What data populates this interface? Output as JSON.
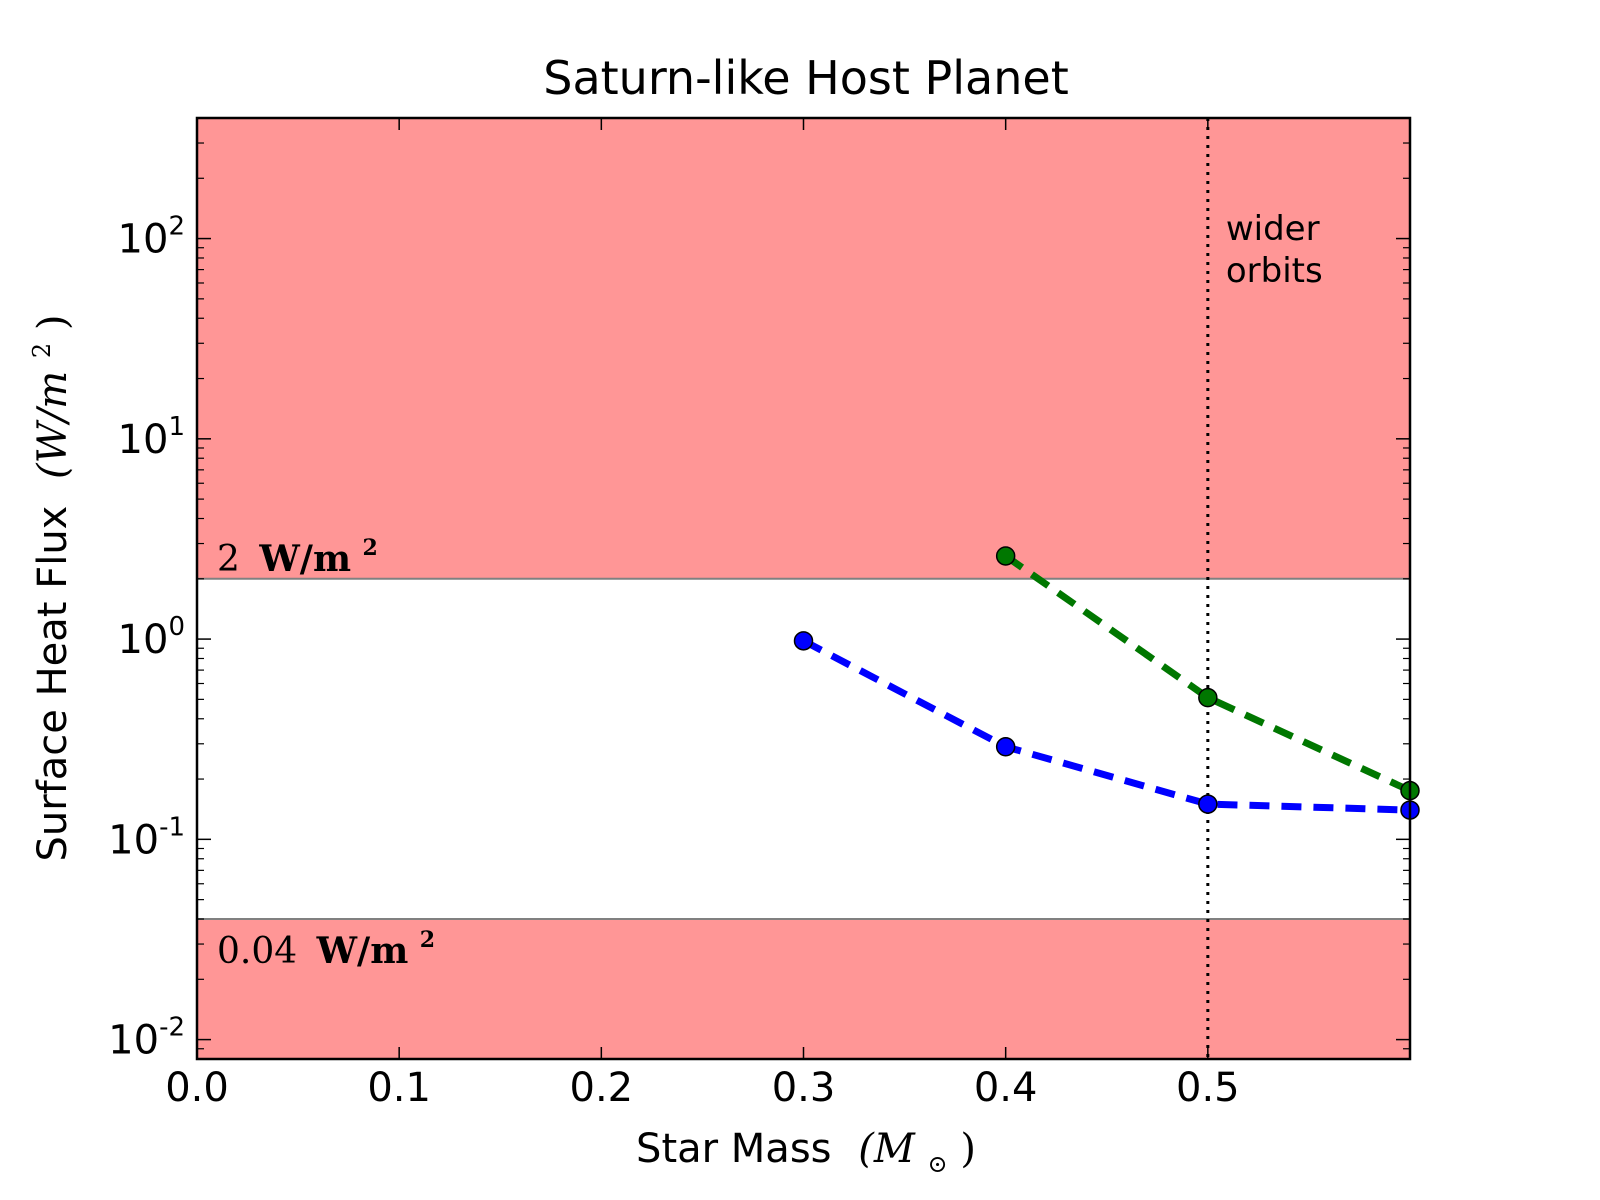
{
  "chart_data": {
    "type": "line",
    "title": "Saturn-like Host Planet",
    "xlabel": "Star Mass",
    "xlabel_unit": "(M",
    "xlabel_unit_sub": "⊙",
    "xlabel_unit_close": ")",
    "ylabel": "Surface Heat Flux",
    "ylabel_unit": "(W/m",
    "ylabel_unit_sup": "2",
    "ylabel_unit_close": " )",
    "xlim": [
      0.0,
      0.6
    ],
    "ylim": [
      0.008,
      400
    ],
    "yscale": "log",
    "x_ticks": [
      {
        "value": 0.0,
        "label": "0.0"
      },
      {
        "value": 0.1,
        "label": "0.1"
      },
      {
        "value": 0.2,
        "label": "0.2"
      },
      {
        "value": 0.3,
        "label": "0.3"
      },
      {
        "value": 0.4,
        "label": "0.4"
      },
      {
        "value": 0.5,
        "label": "0.5"
      }
    ],
    "y_ticks": [
      {
        "value": 0.01,
        "base": "10",
        "exp": "-2"
      },
      {
        "value": 0.1,
        "base": "10",
        "exp": "-1"
      },
      {
        "value": 1,
        "base": "10",
        "exp": "0"
      },
      {
        "value": 10,
        "base": "10",
        "exp": "1"
      },
      {
        "value": 100,
        "base": "10",
        "exp": "2"
      }
    ],
    "series": [
      {
        "name": "green",
        "color": "#007700",
        "points": [
          {
            "x": 0.4,
            "y": 2.6
          },
          {
            "x": 0.5,
            "y": 0.51
          },
          {
            "x": 0.6,
            "y": 0.175
          }
        ]
      },
      {
        "name": "blue",
        "color": "#0000ff",
        "points": [
          {
            "x": 0.3,
            "y": 0.98
          },
          {
            "x": 0.4,
            "y": 0.29
          },
          {
            "x": 0.5,
            "y": 0.15
          },
          {
            "x": 0.6,
            "y": 0.14
          }
        ]
      }
    ],
    "bands": [
      {
        "name": "upper-limit-band",
        "from": 2,
        "to": 400,
        "color": "#ff9696"
      },
      {
        "name": "lower-limit-band",
        "from": 0.008,
        "to": 0.04,
        "color": "#ff9696"
      }
    ],
    "threshold_lines": [
      {
        "value": 2,
        "label_num": "2",
        "label_unit": "W/m",
        "label_sup": "2"
      },
      {
        "value": 0.04,
        "label_num": "0.04",
        "label_unit": "W/m",
        "label_sup": "2"
      }
    ],
    "vline": {
      "x": 0.5,
      "style": "dotted"
    },
    "annotation": {
      "line1": "wider",
      "line2": "orbits"
    }
  }
}
